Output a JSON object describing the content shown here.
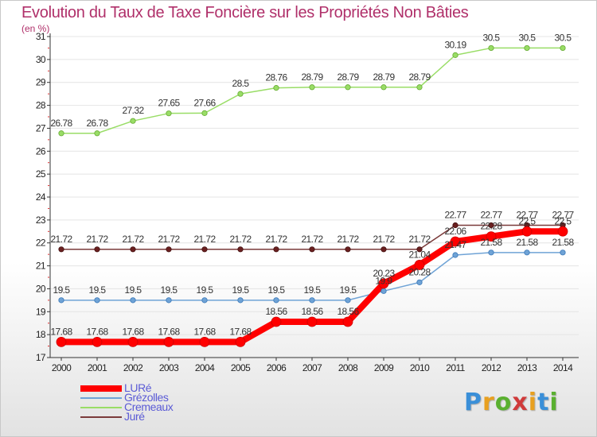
{
  "title": "Evolution du Taux de Taxe Foncière sur les Propriétés Non Bâties",
  "subtitle": "(en %)",
  "logo": {
    "text": "Proxiti",
    "colors": [
      "#3a8fd8",
      "#e8a020",
      "#5ab030",
      "#d03a3a",
      "#e8a020",
      "#3a8fd8",
      "#5ab030"
    ]
  },
  "chart_data": {
    "type": "line",
    "title": "Evolution du Taux de Taxe Foncière sur les Propriétés Non Bâties",
    "ylabel": "(en %)",
    "xlabel": "",
    "ylim": [
      17,
      31
    ],
    "yticks": [
      17,
      18,
      19,
      20,
      21,
      22,
      23,
      24,
      25,
      26,
      27,
      28,
      29,
      30,
      31
    ],
    "x": [
      "2000",
      "2001",
      "2002",
      "2003",
      "2004",
      "2005",
      "2006",
      "2007",
      "2008",
      "2009",
      "2010",
      "2011",
      "2012",
      "2013",
      "2014"
    ],
    "legend_position": "bottom-left",
    "series": [
      {
        "name": "LURé",
        "color": "#ff0000",
        "width": 8,
        "values": [
          17.68,
          17.68,
          17.68,
          17.68,
          17.68,
          17.68,
          18.56,
          18.56,
          18.56,
          20.23,
          21.04,
          22.06,
          22.28,
          22.5,
          22.5
        ],
        "labels": [
          "17.68",
          "17.68",
          "17.68",
          "17.68",
          "17.68",
          "17.68",
          "18.56",
          "18.56",
          "18.56",
          "20.23",
          "21.04",
          "22.06",
          "22.28",
          "22.5",
          "22.5"
        ]
      },
      {
        "name": "Grézolles",
        "color": "#6fa3d6",
        "width": 1.5,
        "values": [
          19.5,
          19.5,
          19.5,
          19.5,
          19.5,
          19.5,
          19.5,
          19.5,
          19.5,
          19.9,
          20.28,
          21.47,
          21.58,
          21.58,
          21.58
        ],
        "labels": [
          "19.5",
          "19.5",
          "19.5",
          "19.5",
          "19.5",
          "19.5",
          "19.5",
          "19.5",
          "19.5",
          "19.9",
          "20.28",
          "21.47",
          "21.58",
          "21.58",
          "21.58"
        ]
      },
      {
        "name": "Cremeaux",
        "color": "#99dd66",
        "width": 1.5,
        "values": [
          26.78,
          26.78,
          27.32,
          27.65,
          27.66,
          28.5,
          28.76,
          28.79,
          28.79,
          28.79,
          28.79,
          30.19,
          30.5,
          30.5,
          30.5
        ],
        "labels": [
          "26.78",
          "26.78",
          "27.32",
          "27.65",
          "27.66",
          "28.5",
          "28.76",
          "28.79",
          "28.79",
          "28.79",
          "28.79",
          "30.19",
          "30.5",
          "30.5",
          "30.5"
        ]
      },
      {
        "name": "Juré",
        "color": "#7a3a3a",
        "width": 1.5,
        "values": [
          21.72,
          21.72,
          21.72,
          21.72,
          21.72,
          21.72,
          21.72,
          21.72,
          21.72,
          21.72,
          21.72,
          22.77,
          22.77,
          22.77,
          22.77
        ],
        "labels": [
          "21.72",
          "21.72",
          "21.72",
          "21.72",
          "21.72",
          "21.72",
          "21.72",
          "21.72",
          "21.72",
          "21.72",
          "21.72",
          "22.77",
          "22.77",
          "22.77",
          "22.77"
        ]
      }
    ]
  }
}
